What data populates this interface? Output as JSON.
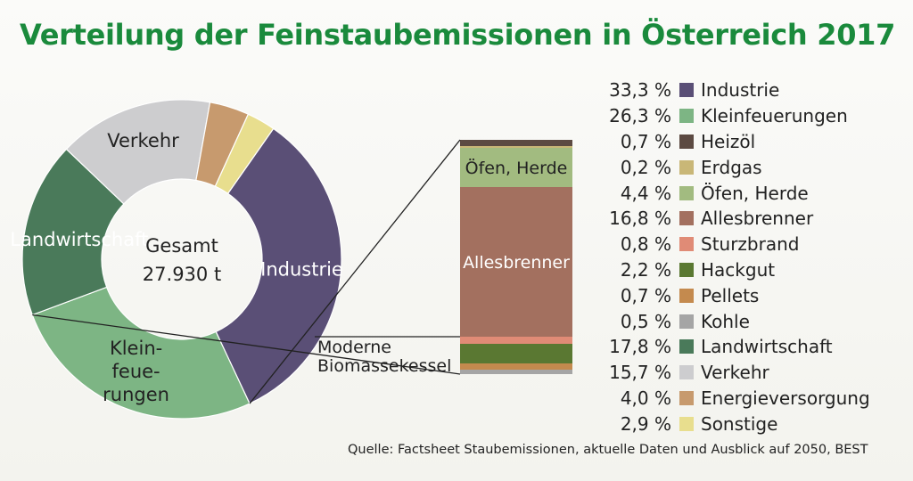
{
  "chart_data": {
    "type": "pie",
    "title": "Verteilung der Feinstaubemissionen in Österreich 2017",
    "center_label": "Gesamt",
    "center_value": "27.930 t",
    "unit": "%",
    "slices": [
      {
        "label": "Industrie",
        "value": 33.3,
        "value_text": "33,3 %",
        "color": "#5a4f76"
      },
      {
        "label": "Kleinfeuerungen",
        "value": 26.3,
        "value_text": "26,3 %",
        "color": "#7db584",
        "ring_label": "Klein-\nfeue-\nrungen"
      },
      {
        "label": "Landwirtschaft",
        "value": 17.8,
        "value_text": "17,8 %",
        "color": "#4a7a5a"
      },
      {
        "label": "Verkehr",
        "value": 15.7,
        "value_text": "15,7 %",
        "color": "#cdcdcf"
      },
      {
        "label": "Energieversorgung",
        "value": 4.0,
        "value_text": "4,0 %",
        "color": "#c79a6e"
      },
      {
        "label": "Sonstige",
        "value": 2.9,
        "value_text": "2,9 %",
        "color": "#e8de8e"
      }
    ],
    "breakdown": {
      "of": "Kleinfeuerungen",
      "bar_labels": {
        "oefen": "Öfen, Herde",
        "allesbrenner": "Allesbrenner",
        "biomasse": "Moderne\nBiomassekessel"
      },
      "segments": [
        {
          "label": "Heizöl",
          "value": 0.7,
          "value_text": "0,7 %",
          "color": "#5c4a42"
        },
        {
          "label": "Erdgas",
          "value": 0.2,
          "value_text": "0,2 %",
          "color": "#c9b777"
        },
        {
          "label": "Öfen, Herde",
          "value": 4.4,
          "value_text": "4,4 %",
          "color": "#a2bb80"
        },
        {
          "label": "Allesbrenner",
          "value": 16.8,
          "value_text": "16,8 %",
          "color": "#a3705f"
        },
        {
          "label": "Sturzbrand",
          "value": 0.8,
          "value_text": "0,8 %",
          "color": "#e08b76"
        },
        {
          "label": "Hackgut",
          "value": 2.2,
          "value_text": "2,2 %",
          "color": "#5a7832"
        },
        {
          "label": "Pellets",
          "value": 0.7,
          "value_text": "0,7 %",
          "color": "#c48a4e"
        },
        {
          "label": "Kohle",
          "value": 0.5,
          "value_text": "0,5 %",
          "color": "#a5a5a5"
        }
      ]
    },
    "legend": [
      {
        "pct": "33,3 %",
        "label": "Industrie",
        "color": "#5a4f76"
      },
      {
        "pct": "26,3 %",
        "label": "Kleinfeuerungen",
        "color": "#7db584"
      },
      {
        "pct": "0,7 %",
        "label": "Heizöl",
        "color": "#5c4a42"
      },
      {
        "pct": "0,2 %",
        "label": "Erdgas",
        "color": "#c9b777"
      },
      {
        "pct": "4,4 %",
        "label": "Öfen, Herde",
        "color": "#a2bb80"
      },
      {
        "pct": "16,8 %",
        "label": "Allesbrenner",
        "color": "#a3705f"
      },
      {
        "pct": "0,8 %",
        "label": "Sturzbrand",
        "color": "#e08b76"
      },
      {
        "pct": "2,2 %",
        "label": "Hackgut",
        "color": "#5a7832"
      },
      {
        "pct": "0,7 %",
        "label": "Pellets",
        "color": "#c48a4e"
      },
      {
        "pct": "0,5 %",
        "label": "Kohle",
        "color": "#a5a5a5"
      },
      {
        "pct": "17,8 %",
        "label": "Landwirtschaft",
        "color": "#4a7a5a"
      },
      {
        "pct": "15,7 %",
        "label": "Verkehr",
        "color": "#cdcdcf"
      },
      {
        "pct": "4,0 %",
        "label": "Energieversorgung",
        "color": "#c79a6e"
      },
      {
        "pct": "2,9 %",
        "label": "Sonstige",
        "color": "#e8de8e"
      }
    ],
    "source": "Quelle:  Factsheet Staubemissionen, aktuelle Daten und Ausblick auf 2050, BEST"
  }
}
